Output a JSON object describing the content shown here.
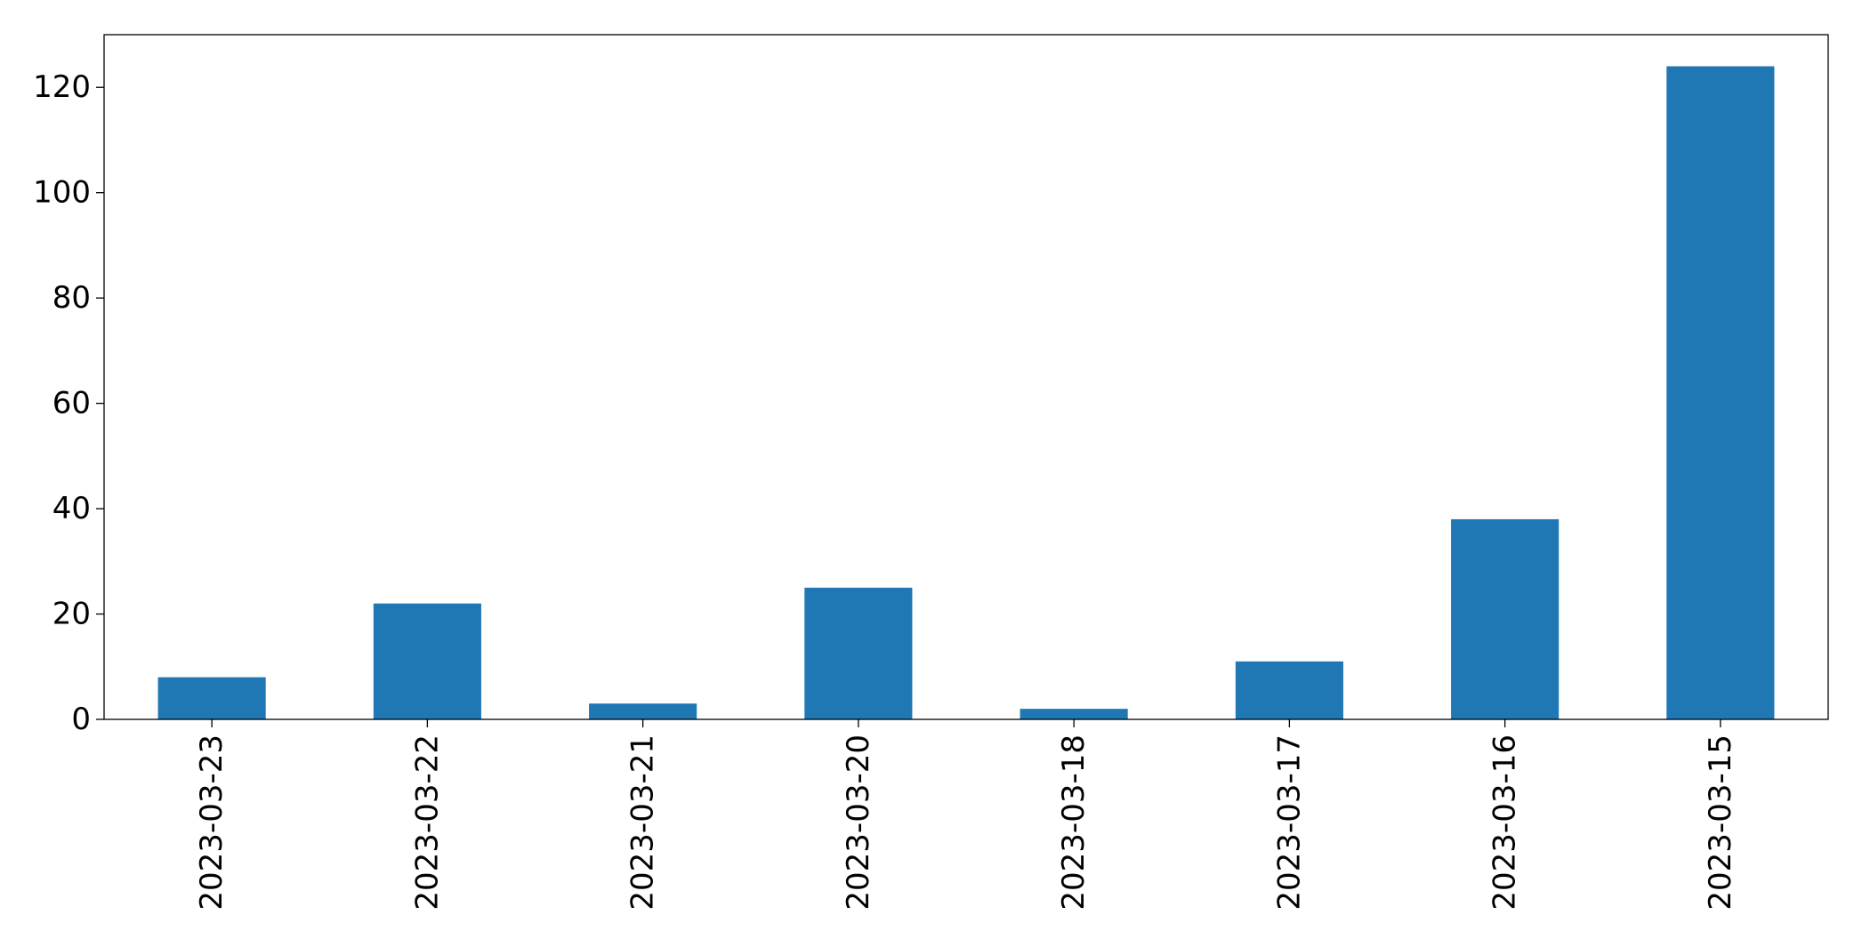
{
  "chart_data": {
    "type": "bar",
    "title": "",
    "xlabel": "",
    "ylabel": "",
    "categories": [
      "2023-03-23",
      "2023-03-22",
      "2023-03-21",
      "2023-03-20",
      "2023-03-18",
      "2023-03-17",
      "2023-03-16",
      "2023-03-15"
    ],
    "values": [
      8,
      22,
      3,
      25,
      2,
      11,
      38,
      124
    ],
    "ylim": [
      0,
      130
    ],
    "yticks": [
      0,
      20,
      40,
      60,
      80,
      100,
      120
    ],
    "grid": false,
    "legend": "none",
    "bar_color": "#1f77b4"
  }
}
